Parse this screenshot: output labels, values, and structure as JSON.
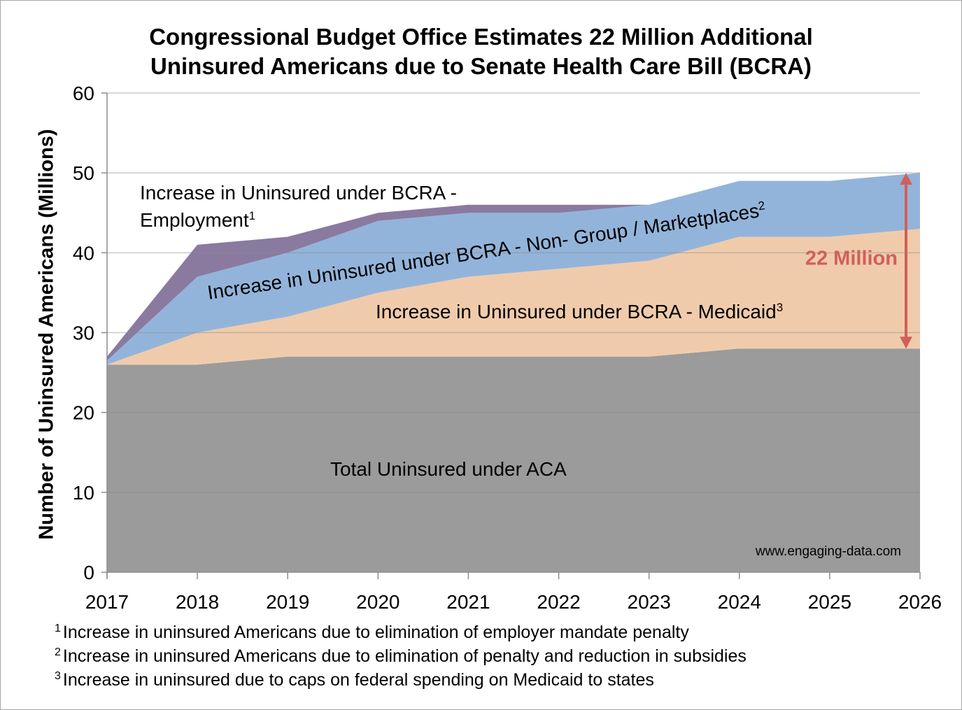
{
  "chart_data": {
    "type": "area",
    "stacked": true,
    "title": "Congressional Budget Office Estimates 22 Million Additional Uninsured Americans due to Senate Health Care Bill (BCRA)",
    "title_lines": [
      "Congressional Budget Office Estimates 22 Million Additional",
      "Uninsured Americans due to Senate Health Care Bill (BCRA)"
    ],
    "xlabel": "",
    "ylabel": "Number of Uninsured Americans (Millions)",
    "ylim": [
      0,
      60
    ],
    "yticks": [
      0,
      10,
      20,
      30,
      40,
      50,
      60
    ],
    "categories": [
      "2017",
      "2018",
      "2019",
      "2020",
      "2021",
      "2022",
      "2023",
      "2024",
      "2025",
      "2026"
    ],
    "grid": "horizontal",
    "series": [
      {
        "name": "Total Uninsured under ACA",
        "color": "#9b9b9b",
        "values": [
          26,
          26,
          27,
          27,
          27,
          27,
          27,
          28,
          28,
          28
        ]
      },
      {
        "name": "Increase in Uninsured under BCRA - Medicaid",
        "footnote_ref": "3",
        "color": "#f0cbab",
        "values": [
          0,
          4,
          5,
          8,
          10,
          11,
          12,
          14,
          14,
          15
        ]
      },
      {
        "name": "Increase in Uninsured under BCRA - Non- Group / Marketplaces",
        "footnote_ref": "2",
        "color": "#93b4da",
        "values": [
          0.5,
          7,
          8,
          9,
          8,
          7,
          7,
          7,
          7,
          7
        ]
      },
      {
        "name": "Increase in Uninsured under BCRA - Employment",
        "footnote_ref": "1",
        "color": "#8a7aa0",
        "values": [
          0.5,
          4,
          2,
          1,
          1,
          1,
          0,
          0,
          0,
          0
        ]
      }
    ],
    "annotations": {
      "employment_label": [
        "Increase in Uninsured under BCRA -",
        "Employment"
      ],
      "employment_sup": "1",
      "nongroup_label": "Increase in Uninsured under BCRA - Non- Group / Marketplaces",
      "nongroup_sup": "2",
      "medicaid_label": "Increase in Uninsured under BCRA - Medicaid",
      "medicaid_sup": "3",
      "aca_label": "Total Uninsured under ACA",
      "arrow": {
        "x": "2026",
        "from": 28,
        "to": 50,
        "label": "22 Million",
        "color": "#d0605a"
      },
      "credit": "www.engaging-data.com"
    },
    "footnotes": [
      {
        "mark": "1",
        "text": "Increase in uninsured Americans due to elimination of employer mandate penalty"
      },
      {
        "mark": "2",
        "text": "Increase in uninsured Americans due to elimination of penalty and reduction in subsidies"
      },
      {
        "mark": "3",
        "text": "Increase in uninsured due to caps on federal spending on Medicaid to states"
      }
    ]
  }
}
